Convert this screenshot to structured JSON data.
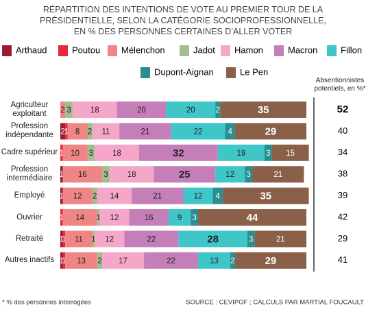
{
  "chart_data": {
    "type": "bar",
    "orientation": "horizontal",
    "stacked": true,
    "title": "RÉPARTITION DES INTENTIONS DE VOTE AU PREMIER TOUR DE LA PRÉSIDENTIELLE, SELON LA CATÉGORIE SOCIOPROFESSIONNELLE, EN % DES PERSONNES CERTAINES D’ALLER VOTER",
    "categories": [
      "Agriculteur exploitant",
      "Profession indépendante",
      "Cadre supérieur",
      "Profession intermédiaire",
      "Employé",
      "Ouvrier",
      "Retraité",
      "Autres inactifs"
    ],
    "xlim": [
      0,
      100
    ],
    "series": [
      {
        "name": "Arthaud",
        "color": "#9b1b30",
        "label_color": "#ffffff",
        "values": [
          0,
          2,
          0,
          1,
          1,
          0,
          1,
          1
        ]
      },
      {
        "name": "Poutou",
        "color": "#e8283c",
        "label_color": "#ffffff",
        "values": [
          0,
          1,
          1,
          0,
          0,
          1,
          1,
          1
        ]
      },
      {
        "name": "Mélenchon",
        "color": "#ef8585",
        "label_color": "#222222",
        "values": [
          2,
          8,
          10,
          16,
          12,
          14,
          11,
          13
        ]
      },
      {
        "name": "Jadot",
        "color": "#a3bd8e",
        "label_color": "#222222",
        "values": [
          3,
          2,
          3,
          3,
          2,
          1,
          1,
          2
        ]
      },
      {
        "name": "Hamon",
        "color": "#f5a7c9",
        "label_color": "#222222",
        "values": [
          18,
          11,
          18,
          18,
          14,
          12,
          12,
          17
        ]
      },
      {
        "name": "Macron",
        "color": "#c47fb9",
        "label_color": "#222222",
        "values": [
          20,
          21,
          32,
          25,
          21,
          16,
          22,
          22
        ]
      },
      {
        "name": "Fillon",
        "color": "#3fc6c9",
        "label_color": "#222222",
        "values": [
          20,
          22,
          19,
          12,
          12,
          9,
          28,
          13
        ]
      },
      {
        "name": "Dupont-Aignan",
        "color": "#2a8d8f",
        "label_color": "#ffffff",
        "values": [
          2,
          4,
          3,
          3,
          4,
          3,
          3,
          2
        ]
      },
      {
        "name": "Le Pen",
        "color": "#8b6049",
        "label_color": "#ffffff",
        "values": [
          35,
          29,
          15,
          21,
          35,
          44,
          21,
          29
        ]
      }
    ],
    "abstention": {
      "title": "Absentionnistes potentiels, en %*",
      "values": [
        52,
        40,
        34,
        38,
        39,
        42,
        29,
        41
      ]
    },
    "footnote": "* % des personnes interrogées",
    "source": "SOURCE : CEVIPOF ; CALCULS PAR MARTIAL FOUCAULT"
  }
}
